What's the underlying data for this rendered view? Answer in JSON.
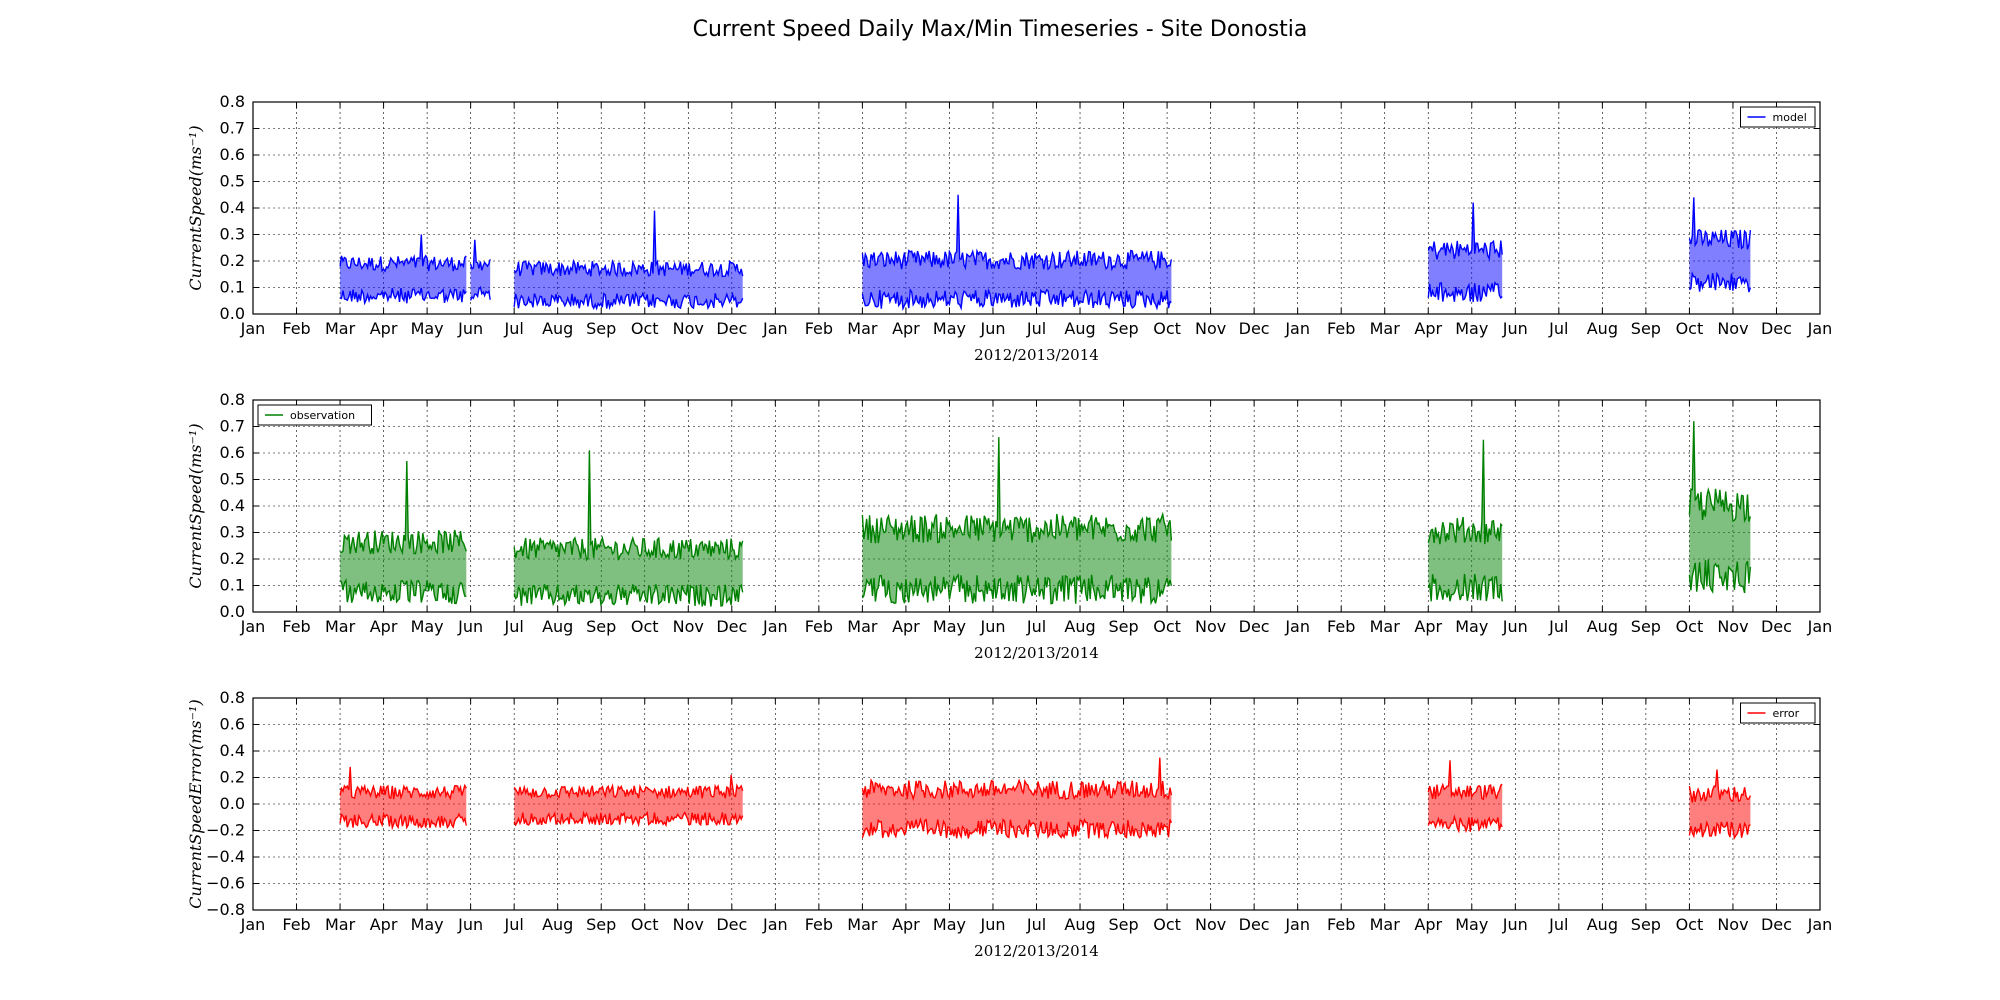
{
  "figure_title": "Current Speed Daily Max/Min Timeseries - Site Donostia",
  "chart_data": [
    {
      "type": "area",
      "series": [
        {
          "name": "model",
          "color": "#0000ff"
        }
      ],
      "xlabel": "2012/2013/2014",
      "ylabel": "CurrentSpeed(ms⁻¹)",
      "ylim": [
        0,
        0.8
      ],
      "y_ticks": [
        "0.0",
        "0.1",
        "0.2",
        "0.3",
        "0.4",
        "0.5",
        "0.6",
        "0.7",
        "0.8"
      ],
      "x_tick_labels": [
        "Jan",
        "Feb",
        "Mar",
        "Apr",
        "May",
        "Jun",
        "Jul",
        "Aug",
        "Sep",
        "Oct",
        "Nov",
        "Dec",
        "Jan",
        "Feb",
        "Mar",
        "Apr",
        "May",
        "Jun",
        "Jul",
        "Aug",
        "Sep",
        "Oct",
        "Nov",
        "Dec",
        "Jan",
        "Feb",
        "Mar",
        "Apr",
        "May",
        "Jun",
        "Jul",
        "Aug",
        "Sep",
        "Oct",
        "Nov",
        "Dec",
        "Jan"
      ],
      "xlim_months": [
        0,
        36
      ],
      "grid": true,
      "legend": "upper right",
      "data_segments": [
        {
          "start": 2.0,
          "end": 4.9,
          "mid": 0.13,
          "amp": 0.09,
          "peak": 0.3
        },
        {
          "start": 5.0,
          "end": 5.45,
          "mid": 0.13,
          "amp": 0.08,
          "peak": 0.28
        },
        {
          "start": 6.0,
          "end": 11.25,
          "mid": 0.11,
          "amp": 0.09,
          "peak": 0.39
        },
        {
          "start": 14.0,
          "end": 21.1,
          "mid": 0.13,
          "amp": 0.11,
          "peak": 0.45
        },
        {
          "start": 27.0,
          "end": 28.7,
          "mid": 0.16,
          "amp": 0.12,
          "peak": 0.42
        },
        {
          "start": 33.0,
          "end": 34.4,
          "mid": 0.2,
          "amp": 0.12,
          "peak": 0.44
        }
      ]
    },
    {
      "type": "area",
      "series": [
        {
          "name": "observation",
          "color": "#008000"
        }
      ],
      "xlabel": "2012/2013/2014",
      "ylabel": "CurrentSpeed(ms⁻¹)",
      "ylim": [
        0,
        0.8
      ],
      "y_ticks": [
        "0.0",
        "0.1",
        "0.2",
        "0.3",
        "0.4",
        "0.5",
        "0.6",
        "0.7",
        "0.8"
      ],
      "x_tick_labels": [
        "Jan",
        "Feb",
        "Mar",
        "Apr",
        "May",
        "Jun",
        "Jul",
        "Aug",
        "Sep",
        "Oct",
        "Nov",
        "Dec",
        "Jan",
        "Feb",
        "Mar",
        "Apr",
        "May",
        "Jun",
        "Jul",
        "Aug",
        "Sep",
        "Oct",
        "Nov",
        "Dec",
        "Jan",
        "Feb",
        "Mar",
        "Apr",
        "May",
        "Jun",
        "Jul",
        "Aug",
        "Sep",
        "Oct",
        "Nov",
        "Dec",
        "Jan"
      ],
      "xlim_months": [
        0,
        36
      ],
      "grid": true,
      "legend": "upper left",
      "data_segments": [
        {
          "start": 2.0,
          "end": 4.9,
          "mid": 0.17,
          "amp": 0.14,
          "peak": 0.57
        },
        {
          "start": 6.0,
          "end": 11.25,
          "mid": 0.15,
          "amp": 0.13,
          "peak": 0.61
        },
        {
          "start": 14.0,
          "end": 21.1,
          "mid": 0.2,
          "amp": 0.17,
          "peak": 0.66
        },
        {
          "start": 27.0,
          "end": 28.7,
          "mid": 0.2,
          "amp": 0.16,
          "peak": 0.65
        },
        {
          "start": 33.0,
          "end": 34.4,
          "mid": 0.27,
          "amp": 0.2,
          "peak": 0.72
        }
      ]
    },
    {
      "type": "area",
      "series": [
        {
          "name": "error",
          "color": "#ff0000"
        }
      ],
      "xlabel": "2012/2013/2014",
      "ylabel": "CurrentSpeedError(ms⁻¹)",
      "ylim": [
        -0.8,
        0.8
      ],
      "y_ticks": [
        "−0.8",
        "−0.6",
        "−0.4",
        "−0.2",
        "0.0",
        "0.2",
        "0.4",
        "0.6",
        "0.8"
      ],
      "x_tick_labels": [
        "Jan",
        "Feb",
        "Mar",
        "Apr",
        "May",
        "Jun",
        "Jul",
        "Aug",
        "Sep",
        "Oct",
        "Nov",
        "Dec",
        "Jan",
        "Feb",
        "Mar",
        "Apr",
        "May",
        "Jun",
        "Jul",
        "Aug",
        "Sep",
        "Oct",
        "Nov",
        "Dec",
        "Jan",
        "Feb",
        "Mar",
        "Apr",
        "May",
        "Jun",
        "Jul",
        "Aug",
        "Sep",
        "Oct",
        "Nov",
        "Dec",
        "Jan"
      ],
      "xlim_months": [
        0,
        36
      ],
      "grid": true,
      "legend": "upper right",
      "data_segments": [
        {
          "start": 2.0,
          "end": 4.9,
          "mid": -0.02,
          "amp": 0.16,
          "peak": 0.28
        },
        {
          "start": 6.0,
          "end": 11.25,
          "mid": -0.01,
          "amp": 0.15,
          "peak": 0.22
        },
        {
          "start": 14.0,
          "end": 21.1,
          "mid": -0.04,
          "amp": 0.22,
          "peak": 0.35
        },
        {
          "start": 27.0,
          "end": 28.7,
          "mid": -0.03,
          "amp": 0.18,
          "peak": 0.33
        },
        {
          "start": 33.0,
          "end": 34.4,
          "mid": -0.06,
          "amp": 0.2,
          "peak": 0.26
        }
      ]
    }
  ]
}
